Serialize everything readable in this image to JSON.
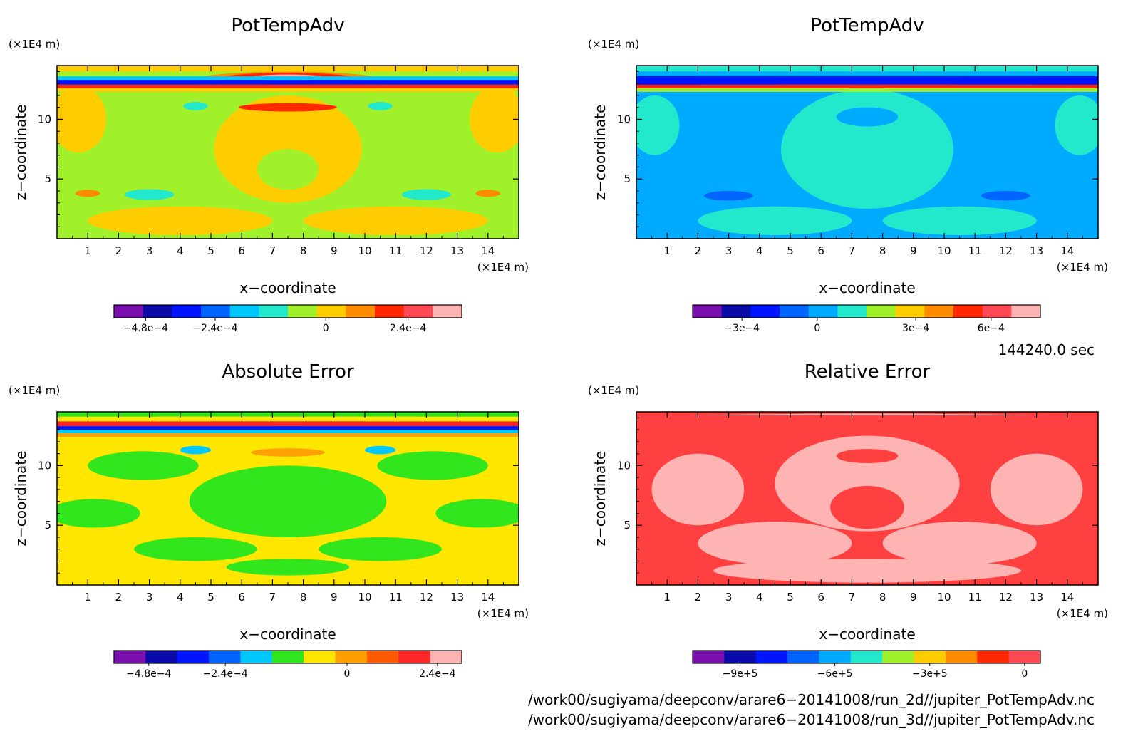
{
  "chart_data": [
    {
      "type": "heatmap",
      "title": "PotTempAdv",
      "xlabel": "x−coordinate",
      "ylabel": "z−coordinate",
      "x_unit": "(×1E4 m)",
      "y_unit": "(×1E4 m)",
      "xlim": [
        0,
        15
      ],
      "ylim": [
        0,
        14.5
      ],
      "x_ticks": [
        "1",
        "2",
        "3",
        "4",
        "5",
        "6",
        "7",
        "8",
        "9",
        "10",
        "11",
        "12",
        "13",
        "14"
      ],
      "y_ticks": [
        "5",
        "10"
      ],
      "colorbar": {
        "colors": [
          "#7a0fae",
          "#0a0aa8",
          "#0014ff",
          "#0064ff",
          "#00c8ff",
          "#22e8cc",
          "#a0f02a",
          "#ffcc00",
          "#ff8c00",
          "#ff2800",
          "#ff4a55",
          "#ffb4b4"
        ],
        "labels": [
          "−4.8e−4",
          "−2.4e−4",
          "0",
          "2.4e−4"
        ],
        "label_positions": [
          0.0,
          0.5,
          0.87,
          1.0
        ]
      },
      "base_color": "#a0f02a"
    },
    {
      "type": "heatmap",
      "title": "PotTempAdv",
      "xlabel": "x−coordinate",
      "ylabel": "z−coordinate",
      "x_unit": "(×1E4 m)",
      "y_unit": "(×1E4 m)",
      "xlim": [
        0,
        15
      ],
      "ylim": [
        0,
        14.5
      ],
      "x_ticks": [
        "1",
        "2",
        "3",
        "4",
        "5",
        "6",
        "7",
        "8",
        "9",
        "10",
        "11",
        "12",
        "13",
        "14"
      ],
      "y_ticks": [
        "5",
        "10"
      ],
      "colorbar": {
        "colors": [
          "#7a0fae",
          "#0a0aa8",
          "#0014ff",
          "#0064ff",
          "#00aaff",
          "#22e8cc",
          "#a0f02a",
          "#ffcc00",
          "#ff8c00",
          "#ff2800",
          "#ff4a55",
          "#ffb4b4"
        ],
        "labels": [
          "−3e−4",
          "0",
          "3e−4",
          "6e−4"
        ],
        "label_positions": [
          0.0,
          0.5,
          0.8,
          1.0
        ]
      },
      "base_color": "#00aaff"
    },
    {
      "type": "heatmap",
      "title": "Absolute Error",
      "xlabel": "x−coordinate",
      "ylabel": "z−coordinate",
      "x_unit": "(×1E4 m)",
      "y_unit": "(×1E4 m)",
      "xlim": [
        0,
        15
      ],
      "ylim": [
        0,
        14.5
      ],
      "x_ticks": [
        "1",
        "2",
        "3",
        "4",
        "5",
        "6",
        "7",
        "8",
        "9",
        "10",
        "11",
        "12",
        "13",
        "14"
      ],
      "y_ticks": [
        "5",
        "10"
      ],
      "colorbar": {
        "colors": [
          "#7a0fae",
          "#0a0aa8",
          "#0014ff",
          "#0064ff",
          "#00c8ff",
          "#32e61e",
          "#ffe600",
          "#ffa000",
          "#ff5a00",
          "#ff2828",
          "#ffb4b4"
        ],
        "labels": [
          "−4.8e−4",
          "−2.4e−4",
          "0",
          "2.4e−4"
        ],
        "label_positions": [
          0.0,
          0.5,
          0.87,
          1.0
        ]
      },
      "base_color": "#ffe600"
    },
    {
      "type": "heatmap",
      "title": "Relative Error",
      "xlabel": "x−coordinate",
      "ylabel": "z−coordinate",
      "x_unit": "(×1E4 m)",
      "y_unit": "(×1E4 m)",
      "xlim": [
        0,
        15
      ],
      "ylim": [
        0,
        14.5
      ],
      "x_ticks": [
        "1",
        "2",
        "3",
        "4",
        "5",
        "6",
        "7",
        "8",
        "9",
        "10",
        "11",
        "12",
        "13",
        "14"
      ],
      "y_ticks": [
        "5",
        "10"
      ],
      "colorbar": {
        "colors": [
          "#7a0fae",
          "#0a0aa8",
          "#0014ff",
          "#0064ff",
          "#00aaff",
          "#22e8cc",
          "#a0f02a",
          "#ffcc00",
          "#ff8c00",
          "#ff2800",
          "#ff4a55"
        ],
        "labels": [
          "−9e+5",
          "−6e+5",
          "−3e+5",
          "0"
        ],
        "label_positions": [
          0.0,
          0.5,
          0.8,
          1.0
        ]
      },
      "base_color": "#ff4040"
    }
  ],
  "time_label": "144240.0 sec",
  "file_paths": [
    "/work00/sugiyama/deepconv/arare6−20141008/run_2d//jupiter_PotTempAdv.nc",
    "/work00/sugiyama/deepconv/arare6−20141008/run_3d//jupiter_PotTempAdv.nc"
  ]
}
